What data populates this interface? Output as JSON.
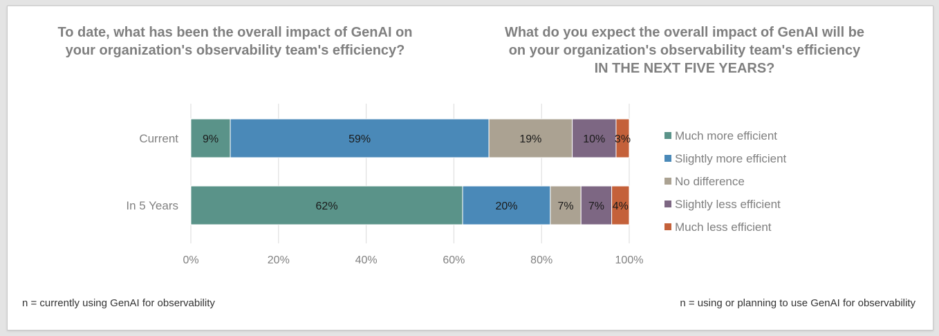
{
  "titles": {
    "left": {
      "line1": "To date, what has been the overall impact of GenAI on",
      "line2": "your organization's observability team's efficiency?"
    },
    "right": {
      "line1": "What do you expect the overall impact of GenAI will be",
      "line2": "on your organization's observability team's efficiency",
      "line3": "IN THE NEXT FIVE YEARS?"
    }
  },
  "footnotes": {
    "left": "n = currently using GenAI for observability",
    "right": "n = using or planning to use GenAI for observability"
  },
  "chart_data": {
    "type": "bar",
    "orientation": "horizontal",
    "stacked": "percent",
    "categories": [
      "Current",
      "In 5 Years"
    ],
    "series": [
      {
        "name": "Much more efficient",
        "color": "#5a9389",
        "values": [
          9,
          62
        ],
        "labels": [
          "9%",
          "62%"
        ]
      },
      {
        "name": "Slightly more efficient",
        "color": "#4a89b8",
        "values": [
          59,
          20
        ],
        "labels": [
          "59%",
          "20%"
        ]
      },
      {
        "name": "No difference",
        "color": "#aba292",
        "values": [
          19,
          7
        ],
        "labels": [
          "19%",
          "7%"
        ]
      },
      {
        "name": "Slightly less efficient",
        "color": "#7d6783",
        "values": [
          10,
          7
        ],
        "labels": [
          "10%",
          "7%"
        ]
      },
      {
        "name": "Much less efficient",
        "color": "#c4613a",
        "values": [
          3,
          4
        ],
        "labels": [
          "3%",
          "4%"
        ]
      }
    ],
    "xlim": [
      0,
      100
    ],
    "xticks": [
      "0%",
      "20%",
      "40%",
      "60%",
      "80%",
      "100%"
    ],
    "grid": true,
    "legend_position": "right"
  }
}
